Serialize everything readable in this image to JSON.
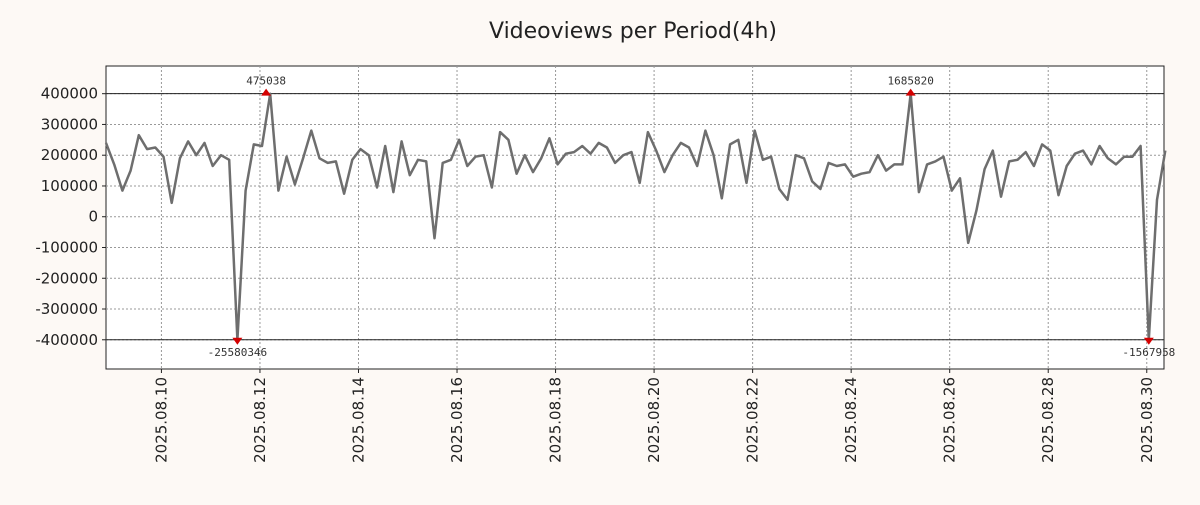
{
  "chart_data": {
    "type": "line",
    "title": "Videoviews per Period(4h)",
    "xlabel": "",
    "ylabel": "",
    "ylim": [
      -495000,
      490000
    ],
    "yticks": [
      -400000,
      -300000,
      -200000,
      -100000,
      0,
      100000,
      200000,
      300000,
      400000
    ],
    "ytick_labels": [
      "-400000",
      "-300000",
      "-200000",
      "-100000",
      "0",
      "100000",
      "200000",
      "300000",
      "400000"
    ],
    "xlim_days": [
      -1.125,
      20.35
    ],
    "xticks": [
      {
        "day": 0,
        "label": "2025.08.10"
      },
      {
        "day": 2,
        "label": "2025.08.12"
      },
      {
        "day": 4,
        "label": "2025.08.14"
      },
      {
        "day": 6,
        "label": "2025.08.16"
      },
      {
        "day": 8,
        "label": "2025.08.18"
      },
      {
        "day": 10,
        "label": "2025.08.20"
      },
      {
        "day": 12,
        "label": "2025.08.22"
      },
      {
        "day": 14,
        "label": "2025.08.24"
      },
      {
        "day": 16,
        "label": "2025.08.26"
      },
      {
        "day": 18,
        "label": "2025.08.28"
      },
      {
        "day": 20,
        "label": "2025.08.30"
      }
    ],
    "grid": true,
    "clip_lines": [
      400000,
      -400000
    ],
    "series_color": "#6e6e6e",
    "marker_color": "#d40000",
    "series": [
      {
        "name": "",
        "x_start_day": -1.125,
        "step_days": 0.16667,
        "values": [
          240000,
          170000,
          85000,
          150000,
          265000,
          220000,
          225000,
          195000,
          45000,
          190000,
          245000,
          200000,
          240000,
          165000,
          200000,
          185000,
          -400000,
          85000,
          235000,
          230000,
          400000,
          85000,
          195000,
          105000,
          190000,
          280000,
          190000,
          175000,
          180000,
          75000,
          185000,
          220000,
          200000,
          95000,
          230000,
          80000,
          245000,
          135000,
          185000,
          180000,
          -70000,
          175000,
          185000,
          250000,
          165000,
          195000,
          200000,
          95000,
          275000,
          250000,
          140000,
          200000,
          145000,
          190000,
          255000,
          170000,
          205000,
          210000,
          230000,
          205000,
          240000,
          225000,
          175000,
          200000,
          210000,
          110000,
          275000,
          215000,
          145000,
          200000,
          240000,
          225000,
          165000,
          280000,
          200000,
          60000,
          235000,
          250000,
          110000,
          280000,
          185000,
          195000,
          90000,
          55000,
          200000,
          190000,
          115000,
          90000,
          175000,
          165000,
          170000,
          130000,
          140000,
          145000,
          200000,
          150000,
          170000,
          170000,
          400000,
          80000,
          170000,
          180000,
          195000,
          85000,
          125000,
          -85000,
          20000,
          155000,
          215000,
          65000,
          180000,
          185000,
          210000,
          165000,
          235000,
          215000,
          70000,
          165000,
          205000,
          215000,
          170000,
          230000,
          190000,
          170000,
          195000,
          195000,
          230000,
          -400000,
          55000,
          215000
        ]
      }
    ],
    "annotations": [
      {
        "label": "475038",
        "day": 2.125,
        "position": "top"
      },
      {
        "label": "-25580346",
        "day": 1.542,
        "position": "bottom"
      },
      {
        "label": "1685820",
        "day": 15.208,
        "position": "top"
      },
      {
        "label": "-1567958",
        "day": 20.042,
        "position": "bottom"
      }
    ]
  }
}
